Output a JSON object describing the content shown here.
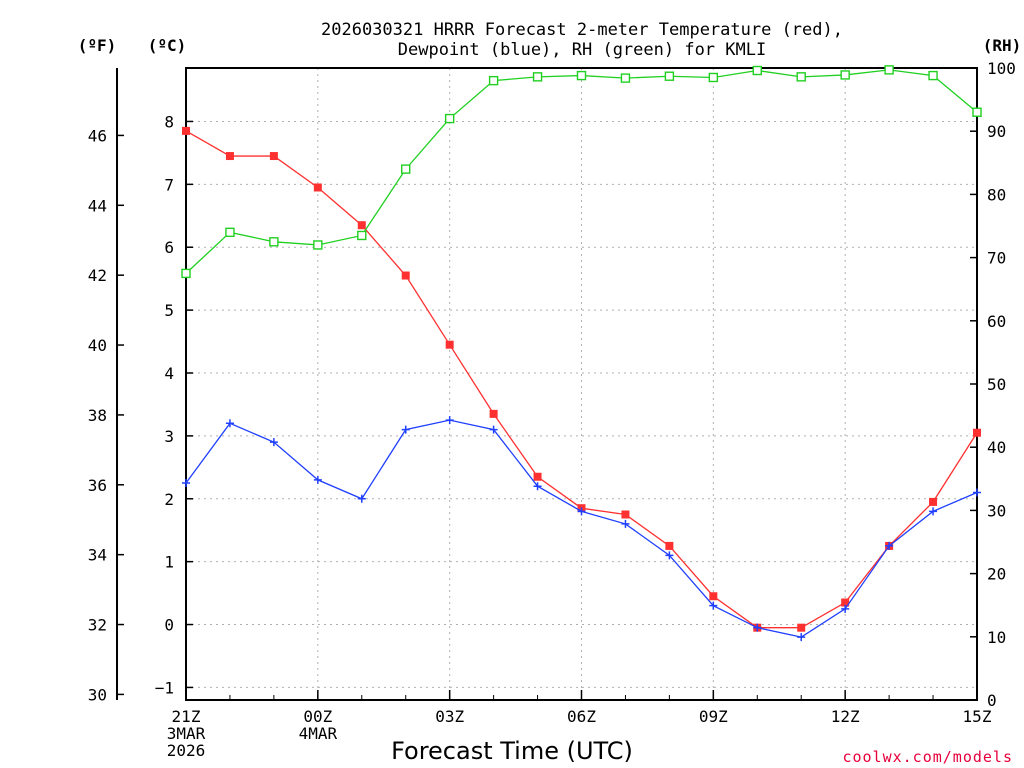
{
  "chart_data": {
    "type": "line",
    "title": [
      "2026030321 HRRR Forecast 2-meter Temperature (red),",
      "Dewpoint (blue), RH (green) for KMLI"
    ],
    "xlabel": "Forecast Time (UTC)",
    "credit": "coolwx.com/models",
    "units": {
      "fahrenheit": "(ºF)",
      "celsius": "(ºC)",
      "rh": "(RH)"
    },
    "x_hours": [
      0,
      1,
      2,
      3,
      4,
      5,
      6,
      7,
      8,
      9,
      10,
      11,
      12,
      13,
      14,
      15,
      16,
      17,
      18
    ],
    "x_ticks": [
      {
        "hour": 0,
        "lines": [
          "21Z",
          "3MAR",
          "2026"
        ]
      },
      {
        "hour": 3,
        "lines": [
          "00Z",
          "4MAR"
        ]
      },
      {
        "hour": 6,
        "lines": [
          "03Z"
        ]
      },
      {
        "hour": 9,
        "lines": [
          "06Z"
        ]
      },
      {
        "hour": 12,
        "lines": [
          "09Z"
        ]
      },
      {
        "hour": 15,
        "lines": [
          "12Z"
        ]
      },
      {
        "hour": 18,
        "lines": [
          "15Z"
        ]
      }
    ],
    "celsius_axis": {
      "range": [
        -1.2,
        8.85
      ],
      "ticks": [
        "−1",
        "0",
        "1",
        "2",
        "3",
        "4",
        "5",
        "6",
        "7",
        "8"
      ],
      "tick_values": [
        -1,
        0,
        1,
        2,
        3,
        4,
        5,
        6,
        7,
        8
      ]
    },
    "fahrenheit_axis": {
      "ticks": [
        "30",
        "32",
        "34",
        "36",
        "38",
        "40",
        "42",
        "44",
        "46"
      ],
      "tick_values": [
        30,
        32,
        34,
        36,
        38,
        40,
        42,
        44,
        46
      ]
    },
    "rh_axis": {
      "range": [
        0,
        100
      ],
      "ticks": [
        "0",
        "10",
        "20",
        "30",
        "40",
        "50",
        "60",
        "70",
        "80",
        "90",
        "100"
      ],
      "tick_values": [
        0,
        10,
        20,
        30,
        40,
        50,
        60,
        70,
        80,
        90,
        100
      ]
    },
    "series": [
      {
        "name": "Temperature",
        "unit": "C",
        "color": "#ff3030",
        "marker": "filled-square",
        "values": [
          7.85,
          7.45,
          7.45,
          6.95,
          6.35,
          5.55,
          4.45,
          3.35,
          2.35,
          1.85,
          1.75,
          1.25,
          0.45,
          -0.05,
          -0.05,
          0.35,
          1.25,
          1.95,
          3.05
        ]
      },
      {
        "name": "Dewpoint",
        "unit": "C",
        "color": "#2040ff",
        "marker": "plus",
        "values": [
          2.25,
          3.2,
          2.9,
          2.3,
          2.0,
          3.1,
          3.25,
          3.1,
          2.2,
          1.8,
          1.6,
          1.1,
          0.3,
          -0.05,
          -0.2,
          0.25,
          1.25,
          1.8,
          2.1
        ]
      },
      {
        "name": "RH",
        "unit": "%",
        "color": "#20d020",
        "marker": "open-square",
        "values": [
          67.5,
          74.0,
          72.5,
          72.0,
          73.5,
          84.0,
          92.0,
          98.0,
          98.6,
          98.8,
          98.4,
          98.7,
          98.5,
          99.6,
          98.6,
          98.9,
          99.7,
          98.8,
          93.0
        ]
      }
    ]
  }
}
